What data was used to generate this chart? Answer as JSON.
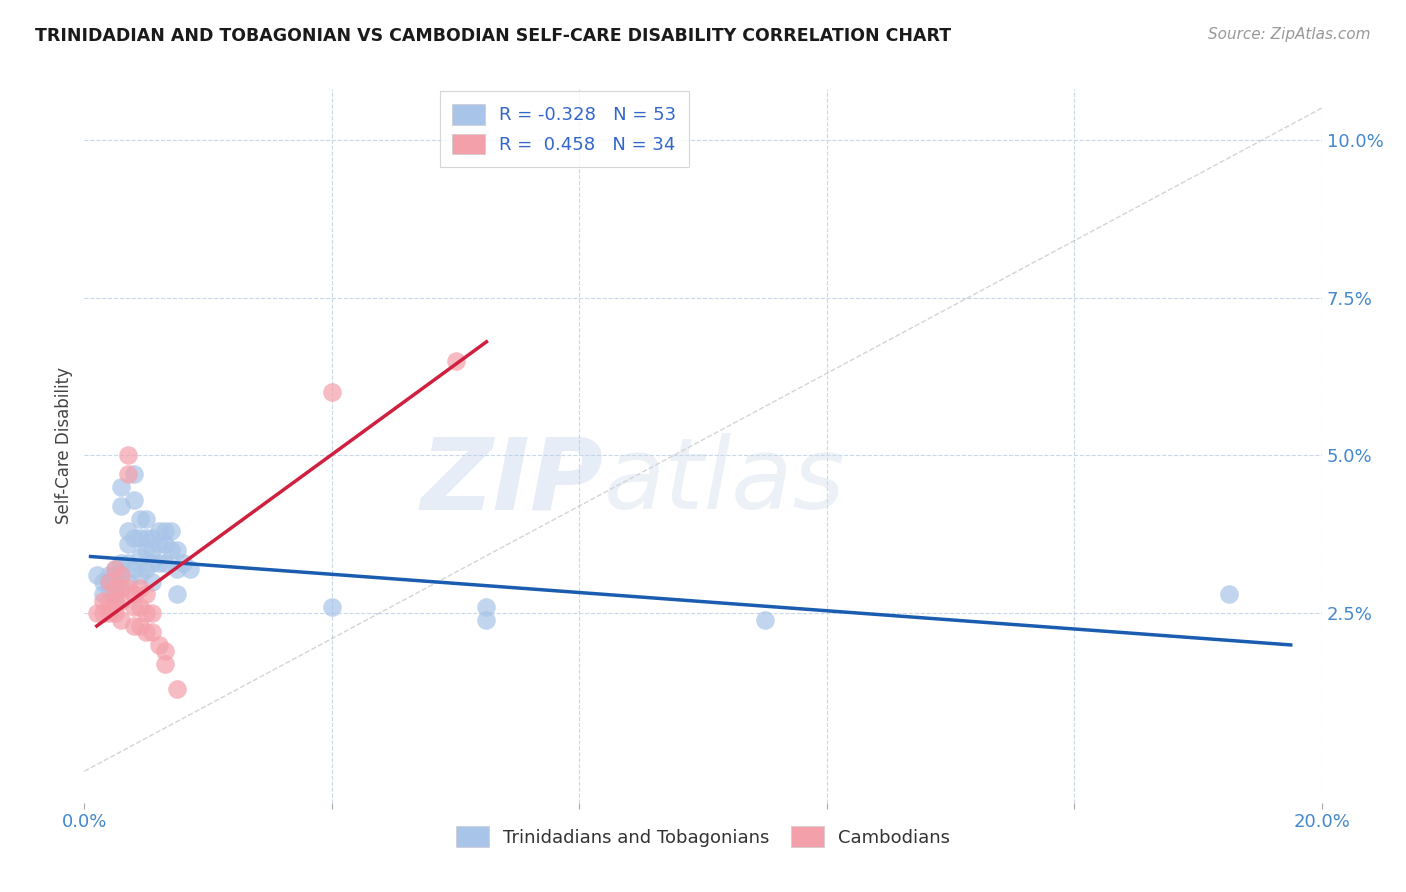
{
  "title": "TRINIDADIAN AND TOBAGONIAN VS CAMBODIAN SELF-CARE DISABILITY CORRELATION CHART",
  "source": "Source: ZipAtlas.com",
  "ylabel": "Self-Care Disability",
  "xlim": [
    0.0,
    0.2
  ],
  "ylim": [
    -0.005,
    0.108
  ],
  "yticks": [
    0.025,
    0.05,
    0.075,
    0.1
  ],
  "yticklabels": [
    "2.5%",
    "5.0%",
    "7.5%",
    "10.0%"
  ],
  "xticks": [
    0.0,
    0.04,
    0.08,
    0.12,
    0.16,
    0.2
  ],
  "xticklabels": [
    "0.0%",
    "",
    "",
    "",
    "",
    "20.0%"
  ],
  "legend_r1": "R = -0.328",
  "legend_n1": "N = 53",
  "legend_r2": "R =  0.458",
  "legend_n2": "N = 34",
  "color_blue": "#a8c4e8",
  "color_pink": "#f4a0aa",
  "color_blue_line": "#1a5cb0",
  "color_pink_line": "#d02040",
  "color_diag": "#b8b8b8",
  "color_grid": "#c8d8e8",
  "watermark_zip": "ZIP",
  "watermark_atlas": "atlas",
  "blue_scatter": [
    [
      0.002,
      0.031
    ],
    [
      0.003,
      0.03
    ],
    [
      0.003,
      0.028
    ],
    [
      0.004,
      0.031
    ],
    [
      0.004,
      0.03
    ],
    [
      0.004,
      0.029
    ],
    [
      0.005,
      0.032
    ],
    [
      0.005,
      0.031
    ],
    [
      0.005,
      0.03
    ],
    [
      0.005,
      0.028
    ],
    [
      0.005,
      0.027
    ],
    [
      0.006,
      0.045
    ],
    [
      0.006,
      0.042
    ],
    [
      0.006,
      0.033
    ],
    [
      0.006,
      0.031
    ],
    [
      0.007,
      0.038
    ],
    [
      0.007,
      0.036
    ],
    [
      0.007,
      0.033
    ],
    [
      0.007,
      0.03
    ],
    [
      0.008,
      0.047
    ],
    [
      0.008,
      0.043
    ],
    [
      0.008,
      0.037
    ],
    [
      0.008,
      0.032
    ],
    [
      0.009,
      0.04
    ],
    [
      0.009,
      0.037
    ],
    [
      0.009,
      0.034
    ],
    [
      0.009,
      0.031
    ],
    [
      0.01,
      0.04
    ],
    [
      0.01,
      0.037
    ],
    [
      0.01,
      0.035
    ],
    [
      0.01,
      0.032
    ],
    [
      0.011,
      0.037
    ],
    [
      0.011,
      0.035
    ],
    [
      0.011,
      0.033
    ],
    [
      0.011,
      0.03
    ],
    [
      0.012,
      0.038
    ],
    [
      0.012,
      0.036
    ],
    [
      0.012,
      0.033
    ],
    [
      0.013,
      0.038
    ],
    [
      0.013,
      0.036
    ],
    [
      0.013,
      0.033
    ],
    [
      0.014,
      0.038
    ],
    [
      0.014,
      0.035
    ],
    [
      0.015,
      0.035
    ],
    [
      0.015,
      0.032
    ],
    [
      0.015,
      0.028
    ],
    [
      0.016,
      0.033
    ],
    [
      0.017,
      0.032
    ],
    [
      0.04,
      0.026
    ],
    [
      0.065,
      0.026
    ],
    [
      0.065,
      0.024
    ],
    [
      0.11,
      0.024
    ],
    [
      0.185,
      0.028
    ]
  ],
  "pink_scatter": [
    [
      0.002,
      0.025
    ],
    [
      0.003,
      0.027
    ],
    [
      0.003,
      0.025
    ],
    [
      0.004,
      0.03
    ],
    [
      0.004,
      0.027
    ],
    [
      0.004,
      0.025
    ],
    [
      0.005,
      0.032
    ],
    [
      0.005,
      0.029
    ],
    [
      0.005,
      0.027
    ],
    [
      0.005,
      0.025
    ],
    [
      0.006,
      0.031
    ],
    [
      0.006,
      0.029
    ],
    [
      0.006,
      0.027
    ],
    [
      0.006,
      0.024
    ],
    [
      0.007,
      0.05
    ],
    [
      0.007,
      0.047
    ],
    [
      0.007,
      0.029
    ],
    [
      0.008,
      0.028
    ],
    [
      0.008,
      0.026
    ],
    [
      0.008,
      0.023
    ],
    [
      0.009,
      0.029
    ],
    [
      0.009,
      0.026
    ],
    [
      0.009,
      0.023
    ],
    [
      0.01,
      0.028
    ],
    [
      0.01,
      0.025
    ],
    [
      0.01,
      0.022
    ],
    [
      0.011,
      0.025
    ],
    [
      0.011,
      0.022
    ],
    [
      0.012,
      0.02
    ],
    [
      0.013,
      0.019
    ],
    [
      0.013,
      0.017
    ],
    [
      0.015,
      0.013
    ],
    [
      0.04,
      0.06
    ],
    [
      0.06,
      0.065
    ]
  ],
  "blue_line_x": [
    0.001,
    0.195
  ],
  "blue_line_y": [
    0.034,
    0.02
  ],
  "pink_line_x": [
    0.002,
    0.065
  ],
  "pink_line_y": [
    0.023,
    0.068
  ],
  "diag_line_x": [
    0.0,
    0.2
  ],
  "diag_line_y": [
    0.0,
    0.105
  ],
  "background_color": "#ffffff"
}
